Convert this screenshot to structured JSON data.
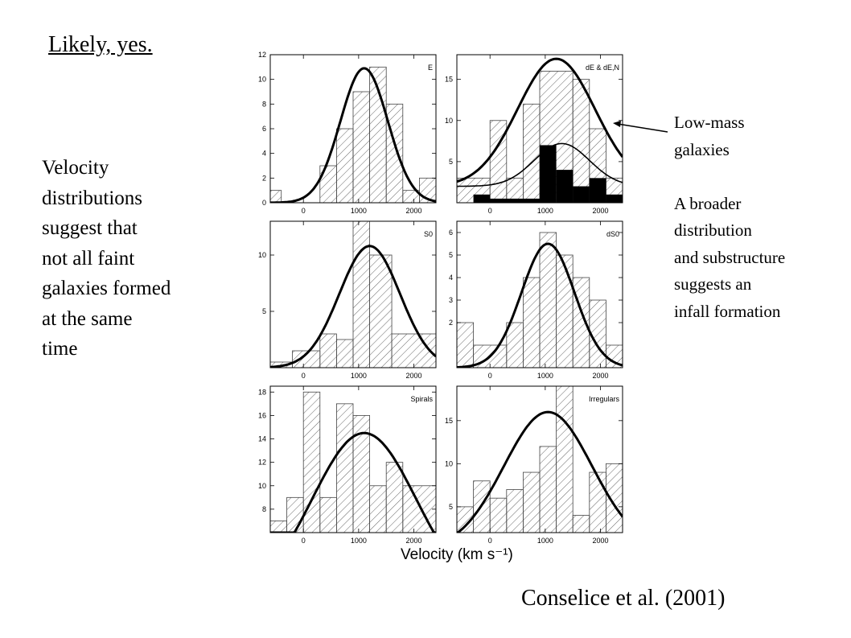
{
  "slide": {
    "title": "Likely, yes.",
    "left_text": [
      "Velocity",
      "distributions",
      "suggest that",
      "not all faint",
      "galaxies formed",
      "at the same",
      "time"
    ],
    "right_text": [
      "Low-mass",
      "galaxies",
      "",
      "A broader",
      "distribution",
      "and substructure",
      "suggests an",
      "infall formation"
    ],
    "citation": "Conselice et al. (2001)"
  },
  "chart_data": [
    {
      "type": "bar",
      "label": "E",
      "xlim": [
        -600,
        2400
      ],
      "ylim": [
        0,
        12
      ],
      "xticks": [
        0,
        1000,
        2000
      ],
      "yticks": [
        0,
        2,
        4,
        6,
        8,
        10,
        12
      ],
      "bins": [
        [
          -600,
          -400,
          1
        ],
        [
          300,
          600,
          3
        ],
        [
          600,
          900,
          6
        ],
        [
          900,
          1200,
          9
        ],
        [
          1200,
          1500,
          11
        ],
        [
          1500,
          1800,
          8
        ],
        [
          1800,
          2100,
          1
        ],
        [
          2100,
          2400,
          2
        ]
      ],
      "fit": {
        "mean": 1100,
        "sigma": 430,
        "amp": 10.9
      }
    },
    {
      "type": "bar",
      "label": "dE & dE,N",
      "xlim": [
        -600,
        2400
      ],
      "ylim": [
        0,
        18
      ],
      "xticks": [
        0,
        1000,
        2000
      ],
      "yticks": [
        5,
        10,
        15
      ],
      "bins": [
        [
          -600,
          0,
          3
        ],
        [
          0,
          300,
          10
        ],
        [
          300,
          600,
          3
        ],
        [
          600,
          900,
          12
        ],
        [
          900,
          1500,
          16
        ],
        [
          1500,
          1800,
          15
        ],
        [
          1800,
          2100,
          9
        ],
        [
          2100,
          2400,
          3
        ]
      ],
      "filled_bins": [
        [
          -300,
          0,
          1
        ],
        [
          0,
          900,
          0.5
        ],
        [
          900,
          1200,
          7
        ],
        [
          1200,
          1500,
          4
        ],
        [
          1500,
          1800,
          2
        ],
        [
          1800,
          2100,
          3
        ],
        [
          2100,
          2400,
          1
        ]
      ],
      "fit": {
        "mean": 1200,
        "sigma": 700,
        "amp": 15.5,
        "offset": 2
      },
      "fit_substructure": {
        "mean": 1300,
        "sigma": 500,
        "amp": 5.2,
        "offset": 2
      }
    },
    {
      "type": "bar",
      "label": "S0",
      "xlim": [
        -600,
        2400
      ],
      "ylim": [
        0,
        13
      ],
      "xticks": [
        0,
        1000,
        2000
      ],
      "yticks": [
        5,
        10
      ],
      "bins": [
        [
          -600,
          -200,
          0.5
        ],
        [
          -200,
          300,
          1.5
        ],
        [
          300,
          600,
          3
        ],
        [
          600,
          900,
          2.5
        ],
        [
          900,
          1200,
          13
        ],
        [
          1200,
          1600,
          10
        ],
        [
          1600,
          2400,
          3
        ]
      ],
      "fit": {
        "mean": 1200,
        "sigma": 550,
        "amp": 10.8
      }
    },
    {
      "type": "bar",
      "label": "dS0",
      "xlim": [
        -600,
        2400
      ],
      "ylim": [
        0,
        6.5
      ],
      "xticks": [
        0,
        1000,
        2000
      ],
      "yticks": [
        2,
        3,
        4,
        5,
        6
      ],
      "bins": [
        [
          -600,
          -300,
          2
        ],
        [
          -300,
          300,
          1
        ],
        [
          300,
          600,
          2
        ],
        [
          600,
          900,
          4
        ],
        [
          900,
          1200,
          6
        ],
        [
          1200,
          1500,
          5
        ],
        [
          1500,
          1800,
          4
        ],
        [
          1800,
          2100,
          3
        ],
        [
          2100,
          2400,
          1
        ]
      ],
      "fit": {
        "mean": 1050,
        "sigma": 480,
        "amp": 5.5
      }
    },
    {
      "type": "bar",
      "label": "Spirals",
      "xlim": [
        -600,
        2400
      ],
      "ylim": [
        6,
        18.5
      ],
      "xticks": [
        0,
        1000,
        2000
      ],
      "yticks": [
        8,
        10,
        12,
        14,
        16,
        18
      ],
      "bins": [
        [
          -600,
          -300,
          7
        ],
        [
          -300,
          0,
          9
        ],
        [
          0,
          300,
          18
        ],
        [
          300,
          600,
          9
        ],
        [
          600,
          900,
          17
        ],
        [
          900,
          1200,
          16
        ],
        [
          1200,
          1500,
          10
        ],
        [
          1500,
          1800,
          12
        ],
        [
          1800,
          2400,
          10
        ]
      ],
      "fit": {
        "mean": 1100,
        "sigma": 950,
        "amp": 14.5
      }
    },
    {
      "type": "bar",
      "label": "Irregulars",
      "xlim": [
        -600,
        2400
      ],
      "ylim": [
        2,
        19
      ],
      "xticks": [
        0,
        1000,
        2000
      ],
      "yticks": [
        5,
        10,
        15
      ],
      "bins": [
        [
          -600,
          -300,
          5
        ],
        [
          -300,
          0,
          8
        ],
        [
          0,
          300,
          6
        ],
        [
          300,
          600,
          7
        ],
        [
          600,
          900,
          9
        ],
        [
          900,
          1200,
          12
        ],
        [
          1200,
          1500,
          19
        ],
        [
          1500,
          1800,
          4
        ],
        [
          1800,
          2100,
          9
        ],
        [
          2100,
          2400,
          10
        ]
      ],
      "fit": {
        "mean": 1050,
        "sigma": 800,
        "amp": 16
      }
    }
  ],
  "xlabel": "Velocity (km s⁻¹)"
}
